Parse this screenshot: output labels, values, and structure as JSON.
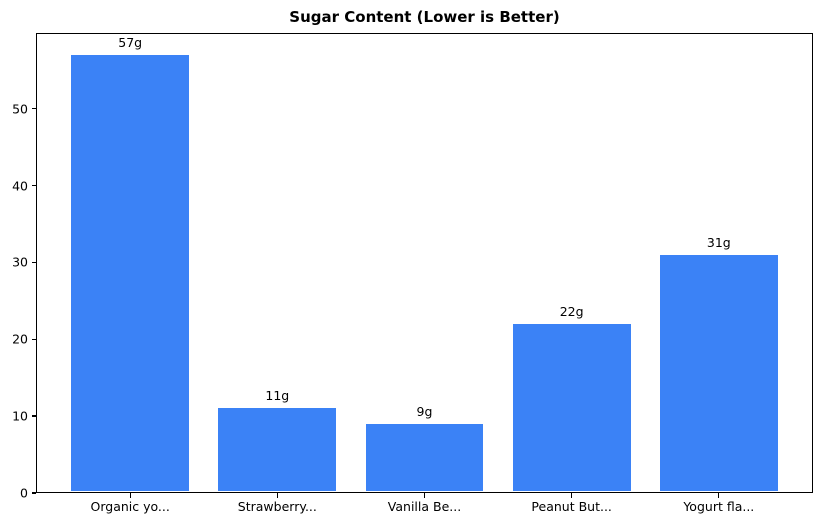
{
  "chart_data": {
    "type": "bar",
    "title": "Sugar Content (Lower is Better)",
    "categories": [
      "Organic yo...",
      "Strawberry...",
      "Vanilla Be...",
      "Peanut But...",
      "Yogurt fla..."
    ],
    "values": [
      57,
      11,
      9,
      22,
      31
    ],
    "value_labels": [
      "57g",
      "11g",
      "9g",
      "22g",
      "31g"
    ],
    "unit": "g",
    "xlabel": "",
    "ylabel": "",
    "yticks": [
      0,
      10,
      20,
      30,
      40,
      50
    ],
    "ylim": [
      0,
      59.85
    ],
    "xlim": [
      -0.64,
      4.64
    ],
    "bar_width": 0.8,
    "bar_color": "#3b82f6",
    "background_color": "#ffffff",
    "text_color": "#000000",
    "grid": false,
    "legend": false
  }
}
